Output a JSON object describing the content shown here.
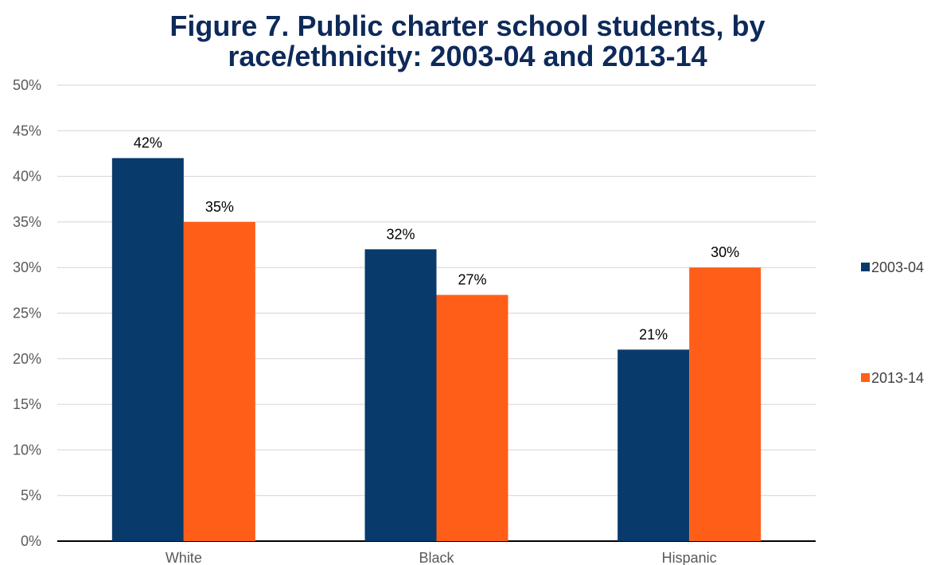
{
  "chart_data": {
    "type": "bar",
    "title_lines": [
      "Figure 7. Public charter school students, by",
      "race/ethnicity: 2003-04 and 2013-14"
    ],
    "categories": [
      "White",
      "Black",
      "Hispanic"
    ],
    "series": [
      {
        "name": "2003-04",
        "values": [
          42,
          32,
          21
        ],
        "color": "#083a6b"
      },
      {
        "name": "2013-14",
        "values": [
          35,
          27,
          30
        ],
        "color": "#ff5e19"
      }
    ],
    "value_format": "percent",
    "ylim": [
      0,
      50
    ],
    "yticks": [
      0,
      5,
      10,
      15,
      20,
      25,
      30,
      35,
      40,
      45,
      50
    ],
    "ytick_labels": [
      "0%",
      "5%",
      "10%",
      "15%",
      "20%",
      "25%",
      "30%",
      "35%",
      "40%",
      "45%",
      "50%"
    ],
    "data_labels": [
      [
        "42%",
        "32%",
        "21%"
      ],
      [
        "35%",
        "27%",
        "30%"
      ]
    ],
    "xlabel": "",
    "ylabel": "",
    "grid": true,
    "legend_position": "right"
  }
}
